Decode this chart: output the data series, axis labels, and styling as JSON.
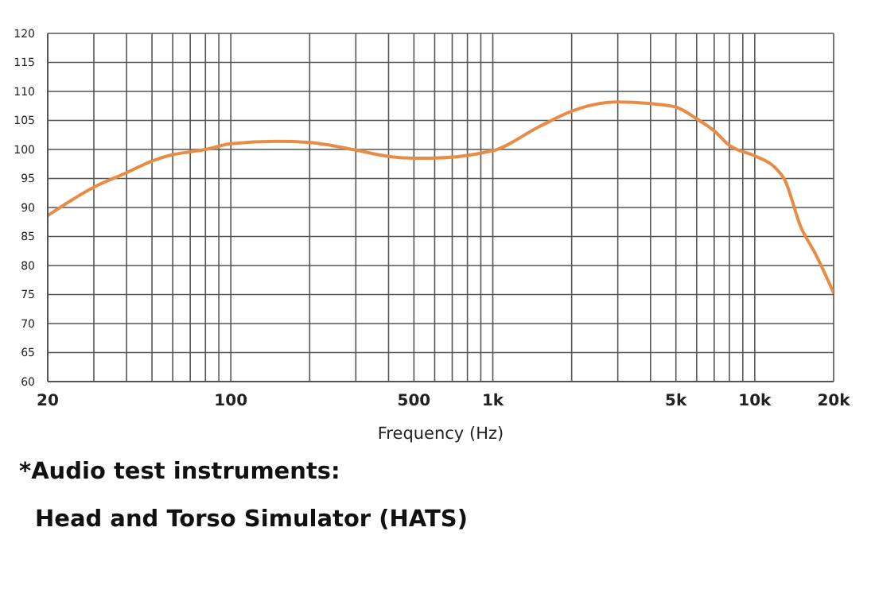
{
  "chart_data": {
    "type": "line",
    "xlabel": "Frequency (Hz)",
    "x": [
      20,
      30,
      40,
      50,
      60,
      70,
      80,
      100,
      150,
      200,
      300,
      400,
      500,
      570,
      1000,
      1500,
      2000,
      3000,
      4000,
      5000,
      6000,
      7000,
      8000,
      10000,
      12000,
      13000,
      15000,
      17000,
      20000
    ],
    "series": [
      {
        "color": "#e88c45",
        "values": [
          88.6,
          93.5,
          96,
          98,
          99.1,
          99.6,
          100,
          101,
          101.4,
          101.2,
          99.9,
          98.8,
          98.5,
          98.5,
          99.8,
          103.9,
          106.6,
          108.2,
          107.9,
          107.3,
          105.3,
          103.2,
          100.7,
          98.9,
          96.8,
          94.8,
          86.6,
          82.1,
          75.3
        ]
      }
    ],
    "log": "x",
    "xlim": [
      20,
      20000
    ],
    "xticks": [
      20,
      {
        "value": 30,
        "label": null
      },
      {
        "value": 40,
        "label": null
      },
      {
        "value": 50,
        "label": null
      },
      {
        "value": 60,
        "label": null
      },
      {
        "value": 70,
        "label": null
      },
      {
        "value": 80,
        "label": null
      },
      {
        "value": 90,
        "label": null
      },
      100,
      {
        "value": 200,
        "label": null
      },
      {
        "value": 300,
        "label": null
      },
      {
        "value": 400,
        "label": null
      },
      500,
      {
        "value": 600,
        "label": null
      },
      {
        "value": 700,
        "label": null
      },
      {
        "value": 800,
        "label": null
      },
      {
        "value": 900,
        "label": null
      },
      {
        "value": 1000,
        "label": "1k"
      },
      {
        "value": 2000,
        "label": null
      },
      {
        "value": 3000,
        "label": null
      },
      {
        "value": 4000,
        "label": null
      },
      {
        "value": 5000,
        "label": "5k"
      },
      {
        "value": 6000,
        "label": null
      },
      {
        "value": 7000,
        "label": null
      },
      {
        "value": 8000,
        "label": null
      },
      {
        "value": 9000,
        "label": null
      },
      {
        "value": 10000,
        "label": "10k"
      },
      {
        "value": 20000,
        "label": "20k"
      }
    ],
    "ylim": [
      60,
      120
    ],
    "yticks": [
      60,
      65,
      70,
      75,
      80,
      85,
      90,
      95,
      100,
      105,
      110,
      115,
      120
    ],
    "grid": true,
    "marker": "none",
    "line_style": "solid",
    "annotations": [
      "*Audio test instruments:",
      "Head and Torso Simulator (HATS)"
    ]
  }
}
